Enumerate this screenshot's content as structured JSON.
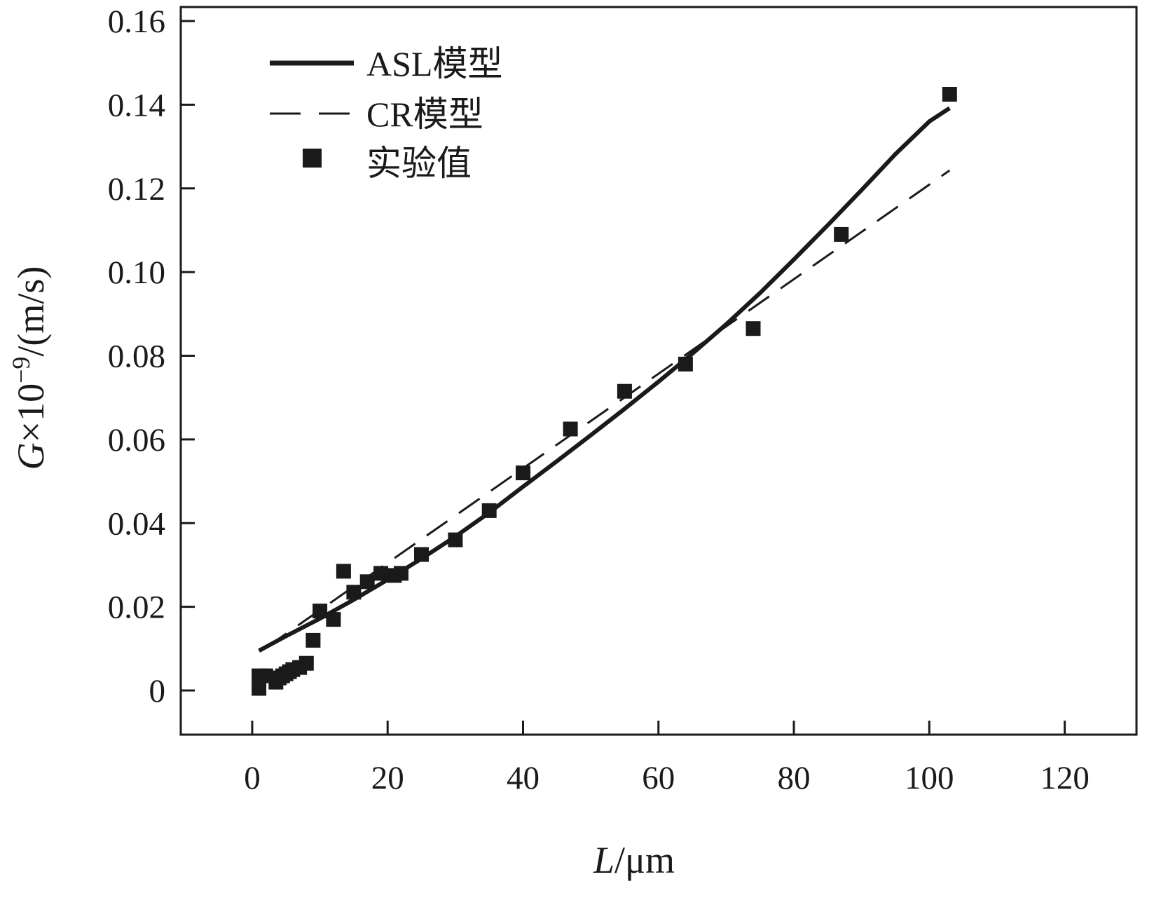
{
  "figure": {
    "background": "#ffffff",
    "ink_color": "#1a1a1a"
  },
  "chart_data": {
    "type": "line+scatter",
    "title": "",
    "xlabel": "L/μm",
    "ylabel": "G×10⁻⁹/(m/s)",
    "xlabel_parts": {
      "var": "L",
      "unit": "/μm"
    },
    "ylabel_parts": {
      "var": "G",
      "times": "×10",
      "exp": "−9",
      "unit": "/(m/s)"
    },
    "xlim": [
      -10.55,
      130.6
    ],
    "ylim": [
      -0.01055,
      0.16335
    ],
    "xticks": [
      0,
      20,
      40,
      60,
      80,
      100,
      120
    ],
    "xtick_labels": [
      "0",
      "20",
      "40",
      "60",
      "80",
      "100",
      "120"
    ],
    "yticks": [
      0,
      0.02,
      0.04,
      0.06,
      0.08,
      0.1,
      0.12,
      0.14,
      0.16
    ],
    "ytick_labels": [
      "0",
      "0.02",
      "0.04",
      "0.06",
      "0.08",
      "0.10",
      "0.12",
      "0.14",
      "0.16"
    ],
    "grid": false,
    "legend_position": "top-left-inside",
    "series": [
      {
        "key": "asl-model-line",
        "name": "ASL模型",
        "type": "line",
        "style": "solid",
        "color": "#1a1a1a",
        "width": 6,
        "x": [
          1,
          5,
          10,
          15,
          20,
          25,
          30,
          35,
          40,
          45,
          50,
          55,
          60,
          65,
          70,
          75,
          80,
          85,
          90,
          95,
          100,
          103
        ],
        "y": [
          0.0095,
          0.013,
          0.0172,
          0.0217,
          0.0265,
          0.0315,
          0.0368,
          0.0425,
          0.0487,
          0.0548,
          0.061,
          0.0673,
          0.0738,
          0.0805,
          0.0875,
          0.095,
          0.103,
          0.1112,
          0.1196,
          0.1282,
          0.136,
          0.1392
        ]
      },
      {
        "key": "cr-model-line",
        "name": "CR模型",
        "type": "line",
        "style": "dashed",
        "color": "#1a1a1a",
        "width": 3,
        "x": [
          2,
          10,
          20,
          30,
          40,
          50,
          60,
          70,
          80,
          90,
          100,
          103
        ],
        "y": [
          0.0102,
          0.0192,
          0.0305,
          0.0418,
          0.0531,
          0.0644,
          0.0757,
          0.087,
          0.0983,
          0.1096,
          0.1209,
          0.1243
        ]
      },
      {
        "key": "experimental-points",
        "name": "实验值",
        "type": "scatter",
        "color": "#1a1a1a",
        "marker": "square",
        "marker_size": 21,
        "x": [
          1,
          1,
          2,
          3.5,
          4,
          4.5,
          5,
          5.5,
          6,
          7,
          8,
          9,
          10,
          12,
          13.5,
          15,
          17,
          19,
          21,
          22,
          25,
          30,
          35,
          40,
          47,
          55,
          64,
          74,
          87,
          103
        ],
        "y": [
          0.0005,
          0.0035,
          0.0035,
          0.002,
          0.003,
          0.0035,
          0.004,
          0.0045,
          0.005,
          0.0055,
          0.0065,
          0.012,
          0.019,
          0.017,
          0.0285,
          0.0235,
          0.026,
          0.028,
          0.0275,
          0.028,
          0.0325,
          0.036,
          0.043,
          0.052,
          0.0625,
          0.0715,
          0.078,
          0.0865,
          0.109,
          0.1425
        ]
      }
    ]
  }
}
